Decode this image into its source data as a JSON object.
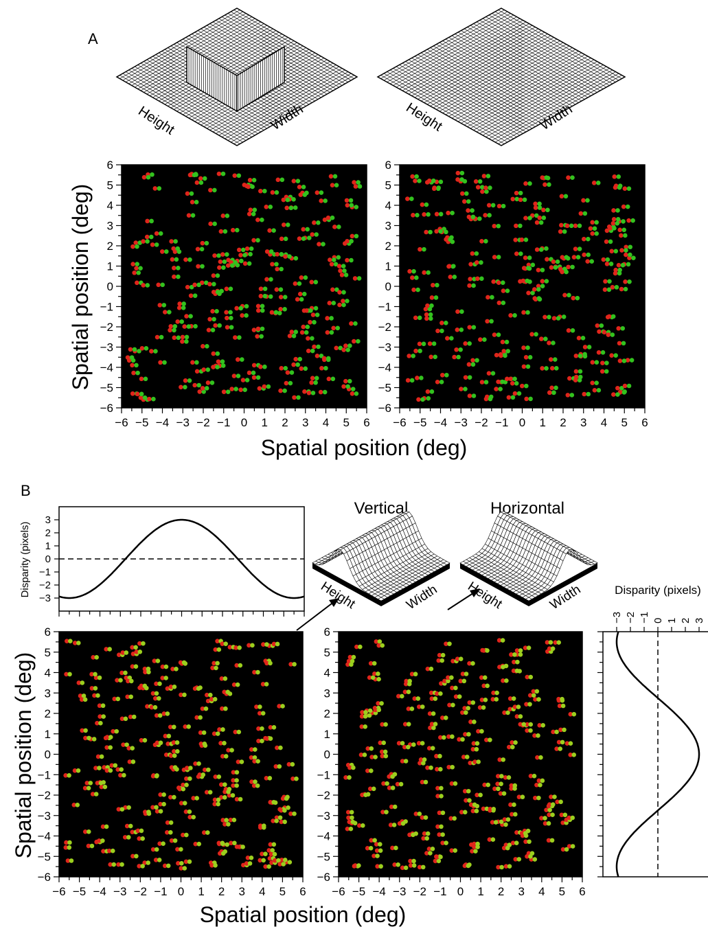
{
  "panel_labels": {
    "a": "A",
    "b": "B"
  },
  "surface_labels": {
    "height": "Height",
    "width": "Width",
    "vertical": "Vertical",
    "horizontal": "Horizontal"
  },
  "axis_labels": {
    "spatial": "Spatial position (deg)",
    "disparity": "Disparity (pixels)"
  },
  "dot_colors": {
    "left_eye": "#e0251b",
    "right_eye": "#33c21e",
    "background": "#000000"
  },
  "chart_data": [
    {
      "type": "scatter",
      "panel": "A-left",
      "description_shape": "square patch in depth",
      "xlabel": "Spatial position (deg)",
      "ylabel": "Spatial position (deg)",
      "xlim": [
        -6,
        6
      ],
      "ylim": [
        -6,
        6
      ],
      "ticks": [
        -6,
        -5,
        -4,
        -3,
        -2,
        -1,
        0,
        1,
        2,
        3,
        4,
        5,
        6
      ],
      "seed": 11,
      "dot_count": 260
    },
    {
      "type": "scatter",
      "panel": "A-right",
      "xlabel": "Spatial position (deg)",
      "xlim": [
        -6,
        6
      ],
      "ylim": [
        -6,
        6
      ],
      "ticks": [
        -6,
        -5,
        -4,
        -3,
        -2,
        -1,
        0,
        1,
        2,
        3,
        4,
        5,
        6
      ],
      "seed": 29,
      "dot_count": 260
    },
    {
      "type": "line",
      "panel": "B-top",
      "ylabel": "Disparity (pixels)",
      "xlim": [
        -6,
        6
      ],
      "ylim": [
        -4,
        4
      ],
      "yticks": [
        -3,
        -2,
        -1,
        0,
        1,
        2,
        3
      ],
      "amplitude": 3,
      "period": 11,
      "zero_line": "dashed"
    },
    {
      "type": "scatter",
      "panel": "B-left",
      "xlabel": "Spatial position (deg)",
      "ylabel": "Spatial position (deg)",
      "xlim": [
        -6,
        6
      ],
      "ylim": [
        -6,
        6
      ],
      "ticks": [
        -6,
        -5,
        -4,
        -3,
        -2,
        -1,
        0,
        1,
        2,
        3,
        4,
        5,
        6
      ],
      "seed": 47,
      "dot_count": 260
    },
    {
      "type": "scatter",
      "panel": "B-middle",
      "xlabel": "Spatial position (deg)",
      "xlim": [
        -6,
        6
      ],
      "ylim": [
        -6,
        6
      ],
      "ticks": [
        -6,
        -5,
        -4,
        -3,
        -2,
        -1,
        0,
        1,
        2,
        3,
        4,
        5,
        6
      ],
      "seed": 83,
      "dot_count": 260
    },
    {
      "type": "line",
      "panel": "B-right",
      "xlabel": "Disparity (pixels)",
      "xlim": [
        -4,
        4
      ],
      "ylim": [
        -6,
        6
      ],
      "xticks": [
        -3,
        -2,
        -1,
        0,
        1,
        2,
        3
      ],
      "amplitude": 3,
      "period": 11,
      "zero_line": "dashed"
    }
  ]
}
